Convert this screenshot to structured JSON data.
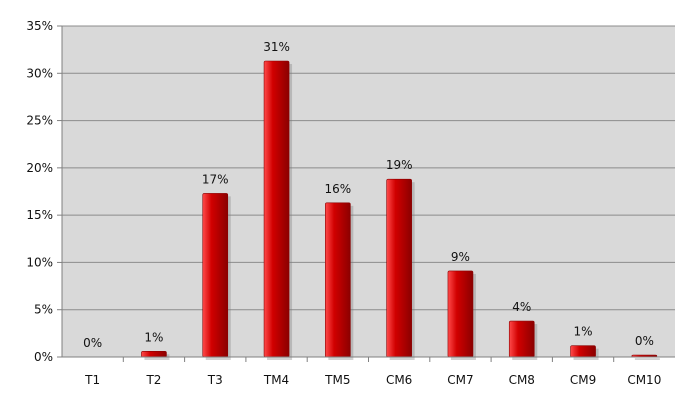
{
  "chart_data": {
    "type": "bar",
    "title": "",
    "xlabel": "",
    "ylabel": "",
    "categories": [
      "T1",
      "T2",
      "T3",
      "TM4",
      "TM5",
      "CM6",
      "CM7",
      "CM8",
      "CM9",
      "CM10"
    ],
    "values": [
      0.0,
      0.6,
      17.3,
      31.3,
      16.3,
      18.8,
      9.1,
      3.8,
      1.2,
      0.2
    ],
    "data_labels": [
      "0%",
      "1%",
      "17%",
      "31%",
      "16%",
      "19%",
      "9%",
      "4%",
      "1%",
      "0%"
    ],
    "ylim": [
      0,
      35
    ],
    "yticks": [
      0,
      5,
      10,
      15,
      20,
      25,
      30,
      35
    ],
    "ytick_labels": [
      "0%",
      "5%",
      "10%",
      "15%",
      "20%",
      "25%",
      "30%",
      "35%"
    ],
    "grid": true,
    "legend": false
  },
  "colors": {
    "plot_background": "#d9d9d9",
    "gridline": "#8c8c8c",
    "axis": "#808080",
    "bar": "#d10000",
    "bar_dark": "#8b0000",
    "bar_highlight": "#ff4a4a",
    "text": "#111111"
  }
}
